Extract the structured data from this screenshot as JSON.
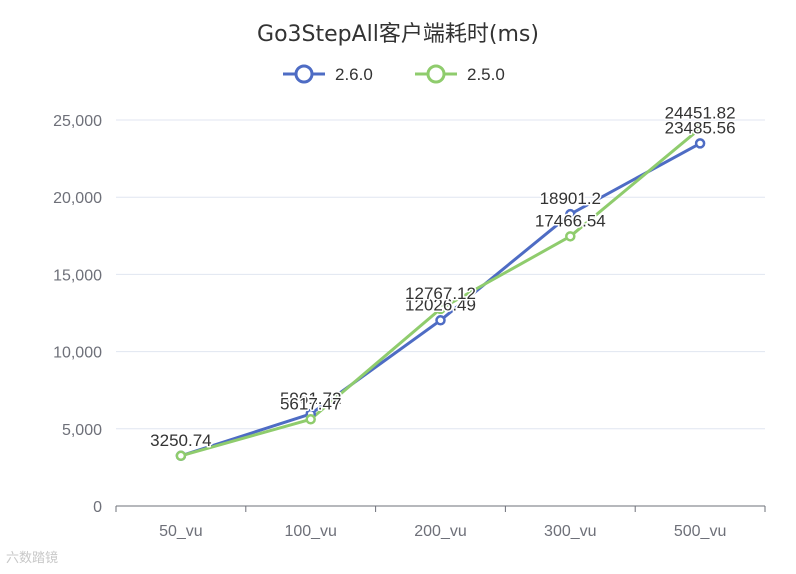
{
  "chart_data": {
    "type": "line",
    "title": "Go3StepAll客户端耗时(ms)",
    "categories": [
      "50_vu",
      "100_vu",
      "200_vu",
      "300_vu",
      "500_vu"
    ],
    "series": [
      {
        "name": "2.6.0",
        "color": "#4e6cc4",
        "values": [
          3250.74,
          5961.72,
          12026.49,
          18901.2,
          23485.56
        ]
      },
      {
        "name": "2.5.0",
        "color": "#8fcc6d",
        "values": [
          3250.74,
          5617.47,
          12767.12,
          17466.54,
          24451.82
        ]
      }
    ],
    "ylim": [
      0,
      25000
    ],
    "yticks": [
      0,
      5000,
      10000,
      15000,
      20000,
      25000
    ],
    "ytick_labels": [
      "0",
      "5,000",
      "10,000",
      "15,000",
      "20,000",
      "25,000"
    ],
    "grid": true,
    "legend": "top-center",
    "xlabel": "",
    "ylabel": ""
  },
  "watermark": "六数踏镜"
}
